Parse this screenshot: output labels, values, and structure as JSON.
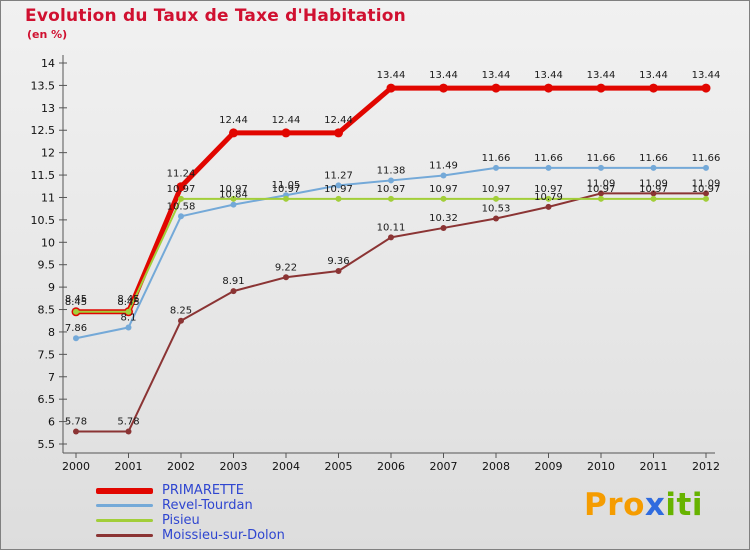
{
  "header": {
    "title": "Evolution du Taux de Taxe d'Habitation",
    "subtitle": "(en %)",
    "color": "#d01030"
  },
  "chart_data": {
    "type": "line",
    "x": [
      2000,
      2001,
      2002,
      2003,
      2004,
      2005,
      2006,
      2007,
      2008,
      2009,
      2010,
      2011,
      2012
    ],
    "ylim": [
      5.5,
      14
    ],
    "ytick_step": 0.5,
    "grid": false,
    "legend_position": "bottom-left",
    "series": [
      {
        "name": "PRIMARETTE",
        "color": "#e10600",
        "stroke_width": 5,
        "marker_r": 4.5,
        "values": [
          8.45,
          8.45,
          11.24,
          12.44,
          12.44,
          12.44,
          13.44,
          13.44,
          13.44,
          13.44,
          13.44,
          13.44,
          13.44
        ]
      },
      {
        "name": "Revel-Tourdan",
        "color": "#74a9d8",
        "stroke_width": 2,
        "marker_r": 3,
        "values": [
          7.86,
          8.1,
          10.58,
          10.84,
          11.05,
          11.27,
          11.38,
          11.49,
          11.66,
          11.66,
          11.66,
          11.66,
          11.66
        ]
      },
      {
        "name": "Pisieu",
        "color": "#a2ce39",
        "stroke_width": 2,
        "marker_r": 3,
        "values": [
          8.45,
          8.45,
          10.97,
          10.97,
          10.97,
          10.97,
          10.97,
          10.97,
          10.97,
          10.97,
          10.97,
          10.97,
          10.97
        ]
      },
      {
        "name": "Moissieu-sur-Dolon",
        "color": "#8b3434",
        "stroke_width": 2,
        "marker_r": 3,
        "values": [
          5.78,
          5.78,
          8.25,
          8.91,
          9.22,
          9.36,
          10.11,
          10.32,
          10.53,
          10.79,
          11.09,
          11.09,
          11.09
        ]
      }
    ],
    "axis_color": "#555555",
    "tick_label_color": "#111111",
    "value_label_color": "#1a1a1a"
  },
  "legend": {
    "text_color": "#2f46d0",
    "items": [
      {
        "label": "PRIMARETTE",
        "color": "#e10600",
        "thick": true
      },
      {
        "label": "Revel-Tourdan",
        "color": "#74a9d8",
        "thick": false
      },
      {
        "label": "Pisieu",
        "color": "#a2ce39",
        "thick": false
      },
      {
        "label": "Moissieu-sur-Dolon",
        "color": "#8b3434",
        "thick": false
      }
    ]
  },
  "logo": {
    "name": "Proxiti",
    "letters": [
      {
        "ch": "P",
        "color": "#f59c00"
      },
      {
        "ch": "r",
        "color": "#f59c00"
      },
      {
        "ch": "o",
        "color": "#f59c00"
      },
      {
        "ch": "x",
        "color": "#2f6bdf"
      },
      {
        "ch": "i",
        "color": "#67b300"
      },
      {
        "ch": "t",
        "color": "#67b300"
      },
      {
        "ch": "i",
        "color": "#67b300"
      }
    ]
  }
}
